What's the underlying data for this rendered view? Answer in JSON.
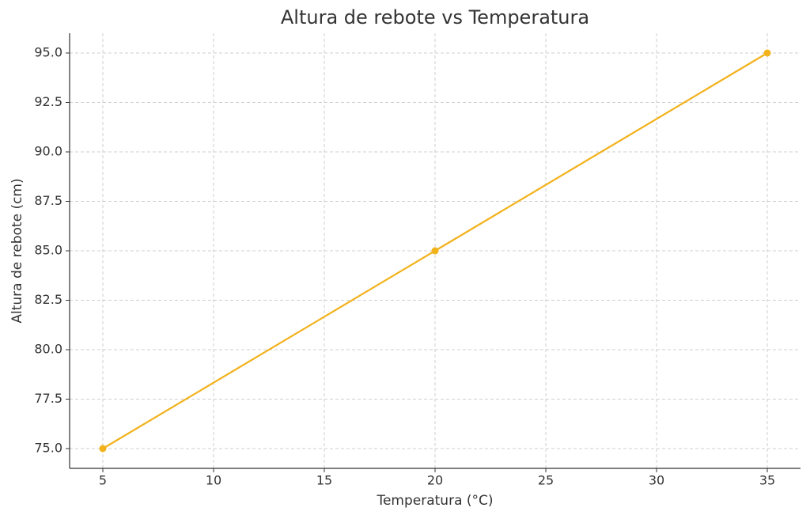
{
  "chart_data": {
    "type": "line",
    "title": "Altura de rebote vs Temperatura",
    "x_label": "Temperatura (°C)",
    "y_label": "Altura de rebote (cm)",
    "x": [
      5,
      20,
      35
    ],
    "series": [
      {
        "name": "Altura de rebote",
        "color": "#f2b21c",
        "values": [
          75,
          85,
          95
        ]
      }
    ],
    "xlim": [
      3.5,
      36.5
    ],
    "xticks": [
      5,
      10,
      15,
      20,
      25,
      30,
      35
    ],
    "ylim": [
      74,
      96
    ],
    "yticks": [
      {
        "value": 75,
        "label": "75.0"
      },
      77.5,
      {
        "value": 80,
        "label": "80.0"
      },
      82.5,
      {
        "value": 85,
        "label": "85.0"
      },
      87.5,
      {
        "value": 90,
        "label": "90.0"
      },
      92.5,
      {
        "value": 95,
        "label": "95.0"
      }
    ],
    "grid": true
  }
}
